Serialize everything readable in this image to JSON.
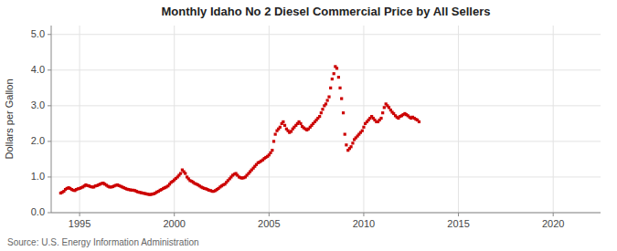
{
  "chart_data": {
    "type": "scatter",
    "title": "Monthly Idaho No 2 Diesel Commercial Price by All Sellers",
    "y_label": "Dollars per Gallon",
    "annotation": "Source: U.S. Energy Information Administration",
    "color": "#cc0000",
    "marker": "square",
    "grid": true,
    "xlim": [
      1993.5,
      2022.5
    ],
    "ylim": [
      0.0,
      5.25
    ],
    "xticks": [
      1995,
      2000,
      2005,
      2010,
      2015,
      2020
    ],
    "yticks": [
      {
        "value": 0.0,
        "label": "0.0"
      },
      {
        "value": 1.0,
        "label": "1.0"
      },
      {
        "value": 2.0,
        "label": "2.0"
      },
      {
        "value": 3.0,
        "label": "3.0"
      },
      {
        "value": 4.0,
        "label": "4.0"
      },
      {
        "value": 5.0,
        "label": "5.0"
      }
    ],
    "x": [
      1994.0,
      1994.08,
      1994.17,
      1994.25,
      1994.33,
      1994.42,
      1994.5,
      1994.58,
      1994.67,
      1994.75,
      1994.83,
      1994.92,
      1995.0,
      1995.08,
      1995.17,
      1995.25,
      1995.33,
      1995.42,
      1995.5,
      1995.58,
      1995.67,
      1995.75,
      1995.83,
      1995.92,
      1996.0,
      1996.08,
      1996.17,
      1996.25,
      1996.33,
      1996.42,
      1996.5,
      1996.58,
      1996.67,
      1996.75,
      1996.83,
      1996.92,
      1997.0,
      1997.08,
      1997.17,
      1997.25,
      1997.33,
      1997.42,
      1997.5,
      1997.58,
      1997.67,
      1997.75,
      1997.83,
      1997.92,
      1998.0,
      1998.08,
      1998.17,
      1998.25,
      1998.33,
      1998.42,
      1998.5,
      1998.58,
      1998.67,
      1998.75,
      1998.83,
      1998.92,
      1999.0,
      1999.08,
      1999.17,
      1999.25,
      1999.33,
      1999.42,
      1999.5,
      1999.58,
      1999.67,
      1999.75,
      1999.83,
      1999.92,
      2000.0,
      2000.08,
      2000.17,
      2000.25,
      2000.33,
      2000.42,
      2000.5,
      2000.58,
      2000.67,
      2000.75,
      2000.83,
      2000.92,
      2001.0,
      2001.08,
      2001.17,
      2001.25,
      2001.33,
      2001.42,
      2001.5,
      2001.58,
      2001.67,
      2001.75,
      2001.83,
      2001.92,
      2002.0,
      2002.08,
      2002.17,
      2002.25,
      2002.33,
      2002.42,
      2002.5,
      2002.58,
      2002.67,
      2002.75,
      2002.83,
      2002.92,
      2003.0,
      2003.08,
      2003.17,
      2003.25,
      2003.33,
      2003.42,
      2003.5,
      2003.58,
      2003.67,
      2003.75,
      2003.83,
      2003.92,
      2004.0,
      2004.08,
      2004.17,
      2004.25,
      2004.33,
      2004.42,
      2004.5,
      2004.58,
      2004.67,
      2004.75,
      2004.83,
      2004.92,
      2005.0,
      2005.08,
      2005.17,
      2005.25,
      2005.33,
      2005.42,
      2005.5,
      2005.58,
      2005.67,
      2005.75,
      2005.83,
      2005.92,
      2006.0,
      2006.08,
      2006.17,
      2006.25,
      2006.33,
      2006.42,
      2006.5,
      2006.58,
      2006.67,
      2006.75,
      2006.83,
      2006.92,
      2007.0,
      2007.08,
      2007.17,
      2007.25,
      2007.33,
      2007.42,
      2007.5,
      2007.58,
      2007.67,
      2007.75,
      2007.83,
      2007.92,
      2008.0,
      2008.08,
      2008.17,
      2008.25,
      2008.33,
      2008.42,
      2008.5,
      2008.58,
      2008.67,
      2008.75,
      2008.83,
      2008.92,
      2009.0,
      2009.08,
      2009.17,
      2009.25,
      2009.33,
      2009.42,
      2009.5,
      2009.58,
      2009.67,
      2009.75,
      2009.83,
      2009.92,
      2010.0,
      2010.08,
      2010.17,
      2010.25,
      2010.33,
      2010.42,
      2010.5,
      2010.58,
      2010.67,
      2010.75,
      2010.83,
      2010.92,
      2011.0,
      2011.08,
      2011.17,
      2011.25,
      2011.33,
      2011.42,
      2011.5,
      2011.58,
      2011.67,
      2011.75,
      2011.83,
      2011.92,
      2012.0,
      2012.08,
      2012.17,
      2012.25,
      2012.33,
      2012.42,
      2012.5,
      2012.58,
      2012.67,
      2012.75,
      2012.83,
      2012.92
    ],
    "values": [
      0.55,
      0.57,
      0.6,
      0.65,
      0.68,
      0.7,
      0.68,
      0.65,
      0.63,
      0.62,
      0.65,
      0.67,
      0.68,
      0.7,
      0.72,
      0.75,
      0.78,
      0.76,
      0.75,
      0.73,
      0.72,
      0.72,
      0.75,
      0.76,
      0.78,
      0.8,
      0.82,
      0.83,
      0.8,
      0.77,
      0.74,
      0.72,
      0.72,
      0.73,
      0.75,
      0.77,
      0.78,
      0.76,
      0.74,
      0.72,
      0.7,
      0.68,
      0.66,
      0.65,
      0.64,
      0.63,
      0.63,
      0.62,
      0.6,
      0.58,
      0.57,
      0.56,
      0.55,
      0.54,
      0.53,
      0.52,
      0.51,
      0.51,
      0.52,
      0.53,
      0.55,
      0.58,
      0.6,
      0.63,
      0.65,
      0.68,
      0.7,
      0.72,
      0.75,
      0.8,
      0.85,
      0.88,
      0.92,
      0.96,
      1.0,
      1.05,
      1.1,
      1.2,
      1.15,
      1.1,
      1.0,
      0.95,
      0.9,
      0.88,
      0.85,
      0.82,
      0.8,
      0.78,
      0.75,
      0.72,
      0.7,
      0.68,
      0.67,
      0.65,
      0.63,
      0.62,
      0.6,
      0.6,
      0.62,
      0.65,
      0.68,
      0.72,
      0.75,
      0.78,
      0.8,
      0.85,
      0.9,
      0.95,
      1.0,
      1.05,
      1.08,
      1.1,
      1.05,
      1.0,
      0.98,
      0.97,
      0.98,
      1.0,
      1.05,
      1.1,
      1.15,
      1.2,
      1.25,
      1.3,
      1.35,
      1.4,
      1.42,
      1.45,
      1.48,
      1.52,
      1.55,
      1.58,
      1.62,
      1.68,
      1.75,
      2.0,
      2.2,
      2.3,
      2.35,
      2.4,
      2.5,
      2.55,
      2.45,
      2.35,
      2.3,
      2.25,
      2.28,
      2.35,
      2.4,
      2.45,
      2.5,
      2.55,
      2.5,
      2.42,
      2.38,
      2.35,
      2.32,
      2.35,
      2.4,
      2.45,
      2.5,
      2.55,
      2.6,
      2.65,
      2.7,
      2.8,
      2.9,
      3.0,
      3.05,
      3.15,
      3.25,
      3.5,
      3.75,
      3.9,
      4.1,
      4.05,
      3.8,
      3.5,
      3.2,
      2.8,
      2.2,
      1.9,
      1.75,
      1.8,
      1.85,
      1.95,
      2.05,
      2.1,
      2.15,
      2.2,
      2.25,
      2.3,
      2.4,
      2.5,
      2.55,
      2.6,
      2.65,
      2.7,
      2.65,
      2.6,
      2.55,
      2.55,
      2.6,
      2.65,
      2.8,
      2.95,
      3.05,
      3.0,
      2.95,
      2.88,
      2.82,
      2.78,
      2.72,
      2.68,
      2.65,
      2.7,
      2.72,
      2.75,
      2.78,
      2.75,
      2.72,
      2.68,
      2.65,
      2.68,
      2.65,
      2.62,
      2.6,
      2.55
    ]
  }
}
